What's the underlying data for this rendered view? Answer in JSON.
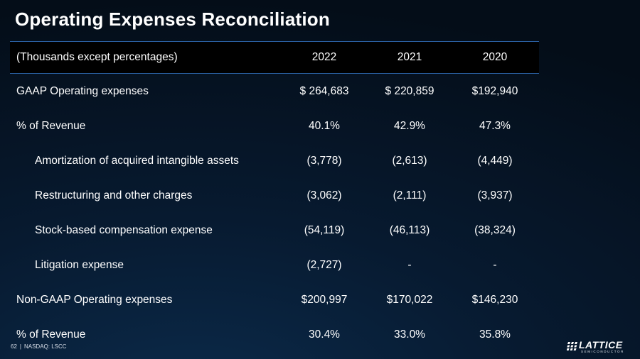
{
  "slide": {
    "title": "Operating Expenses Reconciliation"
  },
  "table": {
    "header": {
      "label": "(Thousands except percentages)",
      "years": [
        "2022",
        "2021",
        "2020"
      ]
    },
    "rows": [
      {
        "label": "GAAP Operating expenses",
        "indent": false,
        "values": [
          "$ 264,683",
          "$ 220,859",
          "$192,940"
        ]
      },
      {
        "label": "% of Revenue",
        "indent": false,
        "values": [
          "40.1%",
          "42.9%",
          "47.3%"
        ]
      },
      {
        "label": "Amortization of acquired intangible assets",
        "indent": true,
        "values": [
          "(3,778)",
          "(2,613)",
          "(4,449)"
        ]
      },
      {
        "label": "Restructuring and other charges",
        "indent": true,
        "values": [
          "(3,062)",
          "(2,111)",
          "(3,937)"
        ]
      },
      {
        "label": "Stock-based compensation expense",
        "indent": true,
        "values": [
          "(54,119)",
          "(46,113)",
          "(38,324)"
        ]
      },
      {
        "label": "Litigation expense",
        "indent": true,
        "values": [
          "(2,727)",
          "-",
          "-"
        ]
      },
      {
        "label": "Non-GAAP Operating expenses",
        "indent": false,
        "values": [
          "$200,997",
          "$170,022",
          "$146,230"
        ]
      },
      {
        "label": "% of Revenue",
        "indent": false,
        "values": [
          "30.4%",
          "33.0%",
          "35.8%"
        ]
      }
    ]
  },
  "footer": {
    "page_number": "62",
    "separator": "|",
    "ticker": "NASDAQ: LSCC"
  },
  "logo": {
    "wordmark": "LATTICE",
    "tagline": "SEMICONDUCTOR",
    "icon": "lattice-logo-icon"
  },
  "colors": {
    "header_rule": "#2a5fa0",
    "header_background": "#000000",
    "text": "#ffffff"
  }
}
